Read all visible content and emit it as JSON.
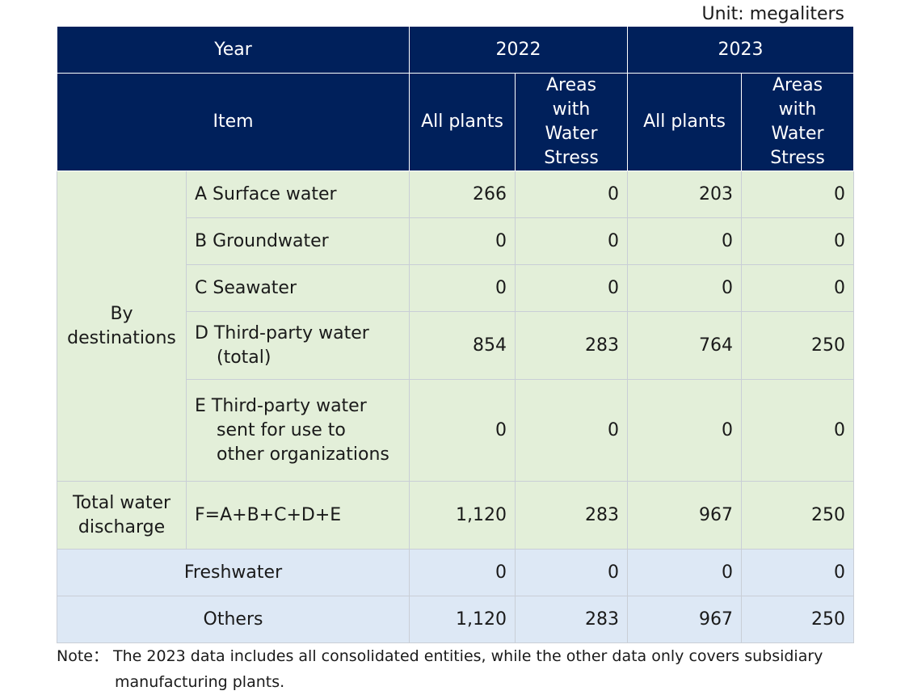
{
  "unit": "Unit: megaliters",
  "header": {
    "year_label": "Year",
    "years": [
      "2022",
      "2023"
    ],
    "item_label": "Item",
    "all_plants": "All plants",
    "stress_line1": "Areas",
    "stress_line2": "with",
    "stress_line3": "Water",
    "stress_line4": "Stress"
  },
  "group_by_destinations": {
    "line1": "By",
    "line2": "destinations"
  },
  "group_total": {
    "line1": "Total water",
    "line2": "discharge"
  },
  "rows": {
    "a": {
      "label": "A Surface water",
      "values": [
        "266",
        "0",
        "203",
        "0"
      ]
    },
    "b": {
      "label": "B Groundwater",
      "values": [
        "0",
        "0",
        "0",
        "0"
      ]
    },
    "c": {
      "label": "C Seawater",
      "values": [
        "0",
        "0",
        "0",
        "0"
      ]
    },
    "d": {
      "label_line1": "D Third-party water",
      "label_line2": "(total)",
      "values": [
        "854",
        "283",
        "764",
        "250"
      ]
    },
    "e": {
      "label_line1": "E Third-party water",
      "label_line2": "sent for use to",
      "label_line3": "other organizations",
      "values": [
        "0",
        "0",
        "0",
        "0"
      ]
    },
    "f": {
      "label": "F=A+B+C+D+E",
      "values": [
        "1,120",
        "283",
        "967",
        "250"
      ]
    },
    "freshwater": {
      "label": "Freshwater",
      "values": [
        "0",
        "0",
        "0",
        "0"
      ]
    },
    "others": {
      "label": "Others",
      "values": [
        "1,120",
        "283",
        "967",
        "250"
      ]
    }
  },
  "note": {
    "line1": "Note： The 2023 data includes all consolidated entities, while the other data only covers subsidiary",
    "line2": "manufacturing plants."
  },
  "colors": {
    "header_bg": "#00205b",
    "green_bg": "#e3efd9",
    "blue_bg": "#dde8f5"
  }
}
